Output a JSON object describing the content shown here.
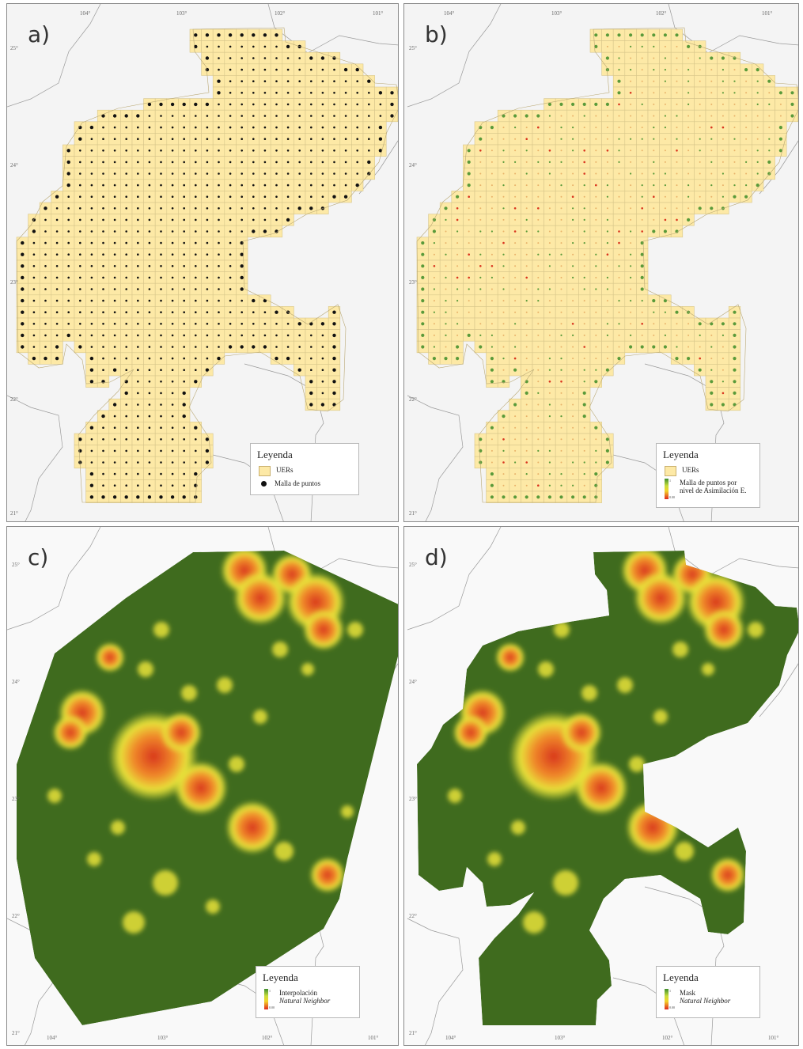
{
  "panels": [
    {
      "id": "a",
      "label": "a)",
      "legend": {
        "title": "Leyenda",
        "items": [
          {
            "type": "box",
            "text": "UERs"
          },
          {
            "type": "dot",
            "text": "Malla de puntos"
          }
        ]
      }
    },
    {
      "id": "b",
      "label": "b)",
      "legend": {
        "title": "Leyenda",
        "items": [
          {
            "type": "box",
            "text": "UERs"
          },
          {
            "type": "ramp",
            "text": "Malla de puntos por",
            "text2": "nivel de Asimilación E.",
            "ramp_top": "1",
            "ramp_bottom": "0.00"
          }
        ]
      }
    },
    {
      "id": "c",
      "label": "c)",
      "legend": {
        "title": "Leyenda",
        "items": [
          {
            "type": "ramp",
            "text": "Interpolación",
            "text2": "Natural Neighbor",
            "ramp_top": "1",
            "ramp_bottom": "0.00"
          }
        ]
      }
    },
    {
      "id": "d",
      "label": "d)",
      "legend": {
        "title": "Leyenda",
        "items": [
          {
            "type": "ramp",
            "text": "Mask",
            "text2": "Natural Neighbor",
            "ramp_top": "1",
            "ramp_bottom": "0.00"
          }
        ]
      }
    }
  ],
  "axes": {
    "longitude_ticks": [
      "104°",
      "103°",
      "102°",
      "101°"
    ],
    "latitude_ticks": [
      "25°",
      "24°",
      "23°",
      "22°",
      "21°"
    ]
  },
  "colors": {
    "uer_fill": "#fde9a6",
    "uer_line": "#d8c68a",
    "point_black": "#111111",
    "point_green": "#5a9a3a",
    "point_red": "#d9351f",
    "surface_low": "#3f6b1e",
    "surface_mid": "#e8e23a",
    "surface_high": "#d8361d",
    "boundary_line": "#9a9a9a"
  }
}
